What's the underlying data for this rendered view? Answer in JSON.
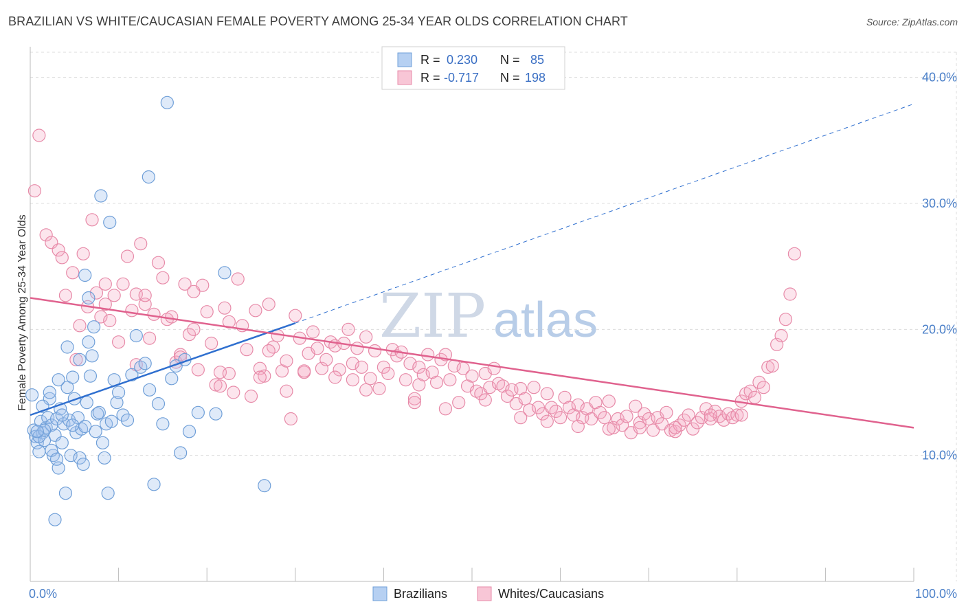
{
  "title": "BRAZILIAN VS WHITE/CAUCASIAN FEMALE POVERTY AMONG 25-34 YEAR OLDS CORRELATION CHART",
  "source": "Source: ZipAtlas.com",
  "watermark": {
    "zip": "ZIP",
    "atlas": "atlas"
  },
  "colors": {
    "blue": "#6f9fd8",
    "blue_fill": "rgba(164,196,238,0.35)",
    "blue_line": "#2f6fcf",
    "pink": "#e78aa8",
    "pink_fill": "rgba(244,170,196,0.30)",
    "pink_line": "#e0628e",
    "grid": "#dcdcdc",
    "tick_label": "#4a7fc8"
  },
  "legend": {
    "rows": [
      {
        "r_label": "R =",
        "r_value": "0.230",
        "n_label": "N =",
        "n_value": "85"
      },
      {
        "r_label": "R =",
        "r_value": "-0.717",
        "n_label": "N =",
        "n_value": "198"
      }
    ]
  },
  "bottom_legend": [
    {
      "label": "Brazilians"
    },
    {
      "label": "Whites/Caucasians"
    }
  ],
  "chart_data": {
    "type": "scatter",
    "title": "BRAZILIAN VS WHITE/CAUCASIAN FEMALE POVERTY AMONG 25-34 YEAR OLDS CORRELATION CHART",
    "xlabel": "",
    "ylabel": "Female Poverty Among 25-34 Year Olds",
    "xlim": [
      0,
      100
    ],
    "ylim": [
      0,
      42
    ],
    "x_tick_labels": [
      "0.0%",
      "100.0%"
    ],
    "y_ticks": [
      10,
      20,
      30,
      40
    ],
    "y_tick_labels": [
      "10.0%",
      "20.0%",
      "30.0%",
      "40.0%"
    ],
    "series": [
      {
        "name": "Brazilians",
        "r": 0.23,
        "n": 85,
        "trend": {
          "x0": 0,
          "y0": 13.2,
          "x1": 30,
          "y1": 20.5,
          "dashed_to_x": 100,
          "dashed_to_y": 37.9
        },
        "points": [
          [
            0.2,
            14.8
          ],
          [
            0.4,
            12.0
          ],
          [
            0.6,
            11.5
          ],
          [
            0.8,
            11.0
          ],
          [
            1.0,
            10.3
          ],
          [
            1.2,
            12.7
          ],
          [
            1.4,
            11.8
          ],
          [
            1.6,
            11.2
          ],
          [
            1.8,
            12.2
          ],
          [
            2.0,
            13.0
          ],
          [
            2.2,
            14.5
          ],
          [
            2.4,
            12.4
          ],
          [
            2.6,
            10.0
          ],
          [
            2.8,
            11.6
          ],
          [
            3.0,
            12.9
          ],
          [
            3.2,
            9.0
          ],
          [
            3.4,
            13.7
          ],
          [
            3.6,
            11.0
          ],
          [
            3.8,
            12.5
          ],
          [
            4.0,
            7.0
          ],
          [
            4.2,
            15.4
          ],
          [
            4.4,
            12.8
          ],
          [
            4.6,
            10.0
          ],
          [
            4.8,
            16.2
          ],
          [
            5.0,
            14.5
          ],
          [
            5.2,
            11.8
          ],
          [
            5.4,
            13.0
          ],
          [
            5.6,
            9.8
          ],
          [
            5.8,
            12.1
          ],
          [
            6.0,
            9.3
          ],
          [
            6.2,
            12.3
          ],
          [
            6.4,
            14.2
          ],
          [
            6.6,
            19.0
          ],
          [
            6.8,
            16.3
          ],
          [
            7.0,
            17.9
          ],
          [
            7.2,
            20.2
          ],
          [
            7.4,
            11.9
          ],
          [
            7.6,
            13.3
          ],
          [
            7.8,
            13.4
          ],
          [
            8.0,
            30.6
          ],
          [
            8.2,
            11.0
          ],
          [
            8.4,
            9.8
          ],
          [
            8.6,
            12.5
          ],
          [
            8.8,
            7.0
          ],
          [
            9.0,
            28.5
          ],
          [
            9.2,
            12.7
          ],
          [
            9.5,
            16.0
          ],
          [
            9.8,
            14.2
          ],
          [
            10.0,
            15.0
          ],
          [
            10.5,
            13.2
          ],
          [
            11.0,
            12.8
          ],
          [
            11.5,
            16.4
          ],
          [
            12.0,
            19.5
          ],
          [
            12.5,
            17.0
          ],
          [
            13.0,
            17.3
          ],
          [
            13.5,
            15.2
          ],
          [
            14.0,
            7.7
          ],
          [
            14.5,
            14.1
          ],
          [
            15.0,
            12.5
          ],
          [
            15.5,
            38.0
          ],
          [
            16.0,
            16.1
          ],
          [
            16.5,
            17.1
          ],
          [
            17.0,
            10.2
          ],
          [
            17.5,
            17.6
          ],
          [
            18.0,
            11.9
          ],
          [
            19.0,
            13.4
          ],
          [
            2.8,
            4.9
          ],
          [
            3.2,
            16.0
          ],
          [
            4.2,
            18.6
          ],
          [
            5.6,
            17.6
          ],
          [
            1.0,
            11.5
          ],
          [
            1.6,
            12.0
          ],
          [
            2.4,
            10.4
          ],
          [
            3.6,
            13.2
          ],
          [
            4.8,
            12.4
          ],
          [
            6.2,
            24.3
          ],
          [
            6.6,
            22.5
          ],
          [
            13.4,
            32.1
          ],
          [
            21.0,
            13.3
          ],
          [
            22.0,
            24.5
          ],
          [
            26.5,
            7.6
          ],
          [
            1.4,
            13.9
          ],
          [
            2.2,
            15.0
          ],
          [
            0.8,
            11.9
          ],
          [
            3.0,
            9.7
          ]
        ]
      },
      {
        "name": "Whites/Caucasians",
        "r": -0.717,
        "n": 198,
        "trend": {
          "x0": 0,
          "y0": 22.5,
          "x1": 100,
          "y1": 12.2
        },
        "points": [
          [
            0.5,
            31.0
          ],
          [
            1.0,
            35.4
          ],
          [
            1.8,
            27.5
          ],
          [
            2.4,
            26.9
          ],
          [
            3.2,
            26.3
          ],
          [
            3.6,
            25.7
          ],
          [
            4.0,
            22.7
          ],
          [
            4.8,
            24.5
          ],
          [
            5.2,
            17.6
          ],
          [
            5.6,
            20.3
          ],
          [
            6.0,
            26.0
          ],
          [
            6.5,
            21.8
          ],
          [
            7.0,
            28.7
          ],
          [
            7.5,
            22.9
          ],
          [
            8.0,
            21.0
          ],
          [
            8.5,
            23.6
          ],
          [
            9.0,
            20.7
          ],
          [
            9.5,
            22.7
          ],
          [
            10.0,
            19.0
          ],
          [
            10.5,
            23.6
          ],
          [
            11.0,
            25.8
          ],
          [
            11.5,
            21.5
          ],
          [
            12.0,
            17.2
          ],
          [
            12.5,
            26.8
          ],
          [
            13.0,
            22.0
          ],
          [
            13.5,
            19.3
          ],
          [
            14.0,
            21.2
          ],
          [
            14.5,
            25.3
          ],
          [
            15.0,
            24.1
          ],
          [
            15.5,
            20.8
          ],
          [
            16.0,
            21.0
          ],
          [
            16.5,
            17.4
          ],
          [
            17.0,
            18.0
          ],
          [
            17.5,
            23.6
          ],
          [
            18.0,
            19.6
          ],
          [
            18.5,
            20.0
          ],
          [
            19.0,
            16.8
          ],
          [
            19.5,
            23.5
          ],
          [
            20.0,
            21.4
          ],
          [
            20.5,
            18.9
          ],
          [
            21.0,
            15.6
          ],
          [
            21.5,
            16.6
          ],
          [
            22.0,
            21.7
          ],
          [
            22.5,
            16.5
          ],
          [
            23.0,
            15.0
          ],
          [
            23.5,
            24.0
          ],
          [
            24.0,
            20.3
          ],
          [
            24.5,
            18.4
          ],
          [
            25.0,
            14.7
          ],
          [
            25.5,
            21.5
          ],
          [
            26.0,
            16.9
          ],
          [
            26.5,
            16.3
          ],
          [
            27.0,
            22.0
          ],
          [
            27.5,
            18.6
          ],
          [
            28.0,
            19.5
          ],
          [
            28.5,
            16.7
          ],
          [
            29.0,
            15.1
          ],
          [
            29.5,
            12.9
          ],
          [
            30.0,
            21.1
          ],
          [
            30.5,
            19.3
          ],
          [
            31.0,
            16.6
          ],
          [
            31.5,
            18.1
          ],
          [
            32.0,
            19.8
          ],
          [
            32.5,
            18.5
          ],
          [
            33.0,
            16.9
          ],
          [
            33.5,
            17.6
          ],
          [
            34.0,
            19.0
          ],
          [
            34.5,
            18.7
          ],
          [
            35.0,
            16.8
          ],
          [
            35.5,
            18.9
          ],
          [
            36.0,
            20.0
          ],
          [
            36.5,
            16.0
          ],
          [
            37.0,
            18.5
          ],
          [
            37.5,
            17.0
          ],
          [
            38.0,
            19.4
          ],
          [
            38.5,
            16.1
          ],
          [
            39.0,
            18.3
          ],
          [
            39.5,
            15.3
          ],
          [
            40.0,
            17.0
          ],
          [
            40.5,
            16.5
          ],
          [
            41.0,
            18.4
          ],
          [
            41.5,
            17.9
          ],
          [
            42.0,
            18.2
          ],
          [
            42.5,
            16.0
          ],
          [
            43.0,
            17.3
          ],
          [
            43.5,
            14.5
          ],
          [
            44.0,
            17.0
          ],
          [
            44.5,
            16.4
          ],
          [
            45.0,
            18.0
          ],
          [
            45.5,
            16.6
          ],
          [
            46.0,
            15.8
          ],
          [
            46.5,
            17.6
          ],
          [
            47.0,
            18.0
          ],
          [
            47.5,
            16.0
          ],
          [
            48.0,
            17.1
          ],
          [
            48.5,
            14.2
          ],
          [
            49.0,
            16.9
          ],
          [
            49.5,
            15.5
          ],
          [
            50.0,
            16.3
          ],
          [
            50.5,
            15.1
          ],
          [
            51.0,
            14.9
          ],
          [
            51.5,
            16.5
          ],
          [
            52.0,
            15.4
          ],
          [
            52.5,
            16.9
          ],
          [
            53.0,
            15.7
          ],
          [
            53.5,
            15.5
          ],
          [
            54.0,
            14.7
          ],
          [
            54.5,
            15.2
          ],
          [
            55.0,
            14.1
          ],
          [
            55.5,
            15.3
          ],
          [
            56.0,
            14.5
          ],
          [
            56.5,
            13.6
          ],
          [
            57.0,
            15.4
          ],
          [
            57.5,
            13.8
          ],
          [
            58.0,
            13.3
          ],
          [
            58.5,
            14.9
          ],
          [
            59.0,
            13.8
          ],
          [
            59.5,
            13.5
          ],
          [
            60.0,
            13.0
          ],
          [
            60.5,
            14.6
          ],
          [
            61.0,
            13.8
          ],
          [
            61.5,
            13.2
          ],
          [
            62.0,
            14.0
          ],
          [
            62.5,
            13.0
          ],
          [
            63.0,
            13.7
          ],
          [
            63.5,
            12.9
          ],
          [
            64.0,
            14.2
          ],
          [
            64.5,
            13.4
          ],
          [
            65.0,
            13.0
          ],
          [
            65.5,
            14.3
          ],
          [
            66.0,
            12.2
          ],
          [
            66.5,
            12.9
          ],
          [
            67.0,
            12.4
          ],
          [
            67.5,
            13.1
          ],
          [
            68.0,
            11.8
          ],
          [
            68.5,
            13.9
          ],
          [
            69.0,
            12.6
          ],
          [
            69.5,
            13.3
          ],
          [
            70.0,
            12.9
          ],
          [
            70.5,
            12.0
          ],
          [
            71.0,
            13.0
          ],
          [
            71.5,
            12.5
          ],
          [
            72.0,
            13.4
          ],
          [
            72.5,
            12.0
          ],
          [
            73.0,
            11.9
          ],
          [
            73.5,
            12.4
          ],
          [
            74.0,
            12.8
          ],
          [
            74.5,
            13.2
          ],
          [
            75.0,
            12.1
          ],
          [
            75.5,
            12.6
          ],
          [
            76.0,
            13.0
          ],
          [
            76.5,
            13.7
          ],
          [
            77.0,
            12.9
          ],
          [
            77.5,
            13.5
          ],
          [
            78.0,
            13.1
          ],
          [
            78.5,
            12.8
          ],
          [
            79.0,
            13.3
          ],
          [
            79.5,
            13.0
          ],
          [
            80.0,
            13.2
          ],
          [
            80.5,
            14.3
          ],
          [
            81.0,
            14.9
          ],
          [
            81.5,
            15.1
          ],
          [
            82.0,
            14.6
          ],
          [
            82.5,
            15.8
          ],
          [
            83.0,
            15.4
          ],
          [
            83.5,
            17.0
          ],
          [
            84.0,
            17.1
          ],
          [
            84.5,
            18.8
          ],
          [
            85.0,
            19.5
          ],
          [
            85.5,
            20.8
          ],
          [
            86.0,
            22.8
          ],
          [
            86.5,
            26.0
          ],
          [
            12.0,
            22.8
          ],
          [
            18.5,
            23.0
          ],
          [
            22.5,
            20.6
          ],
          [
            27.0,
            18.3
          ],
          [
            31.0,
            16.7
          ],
          [
            34.5,
            16.2
          ],
          [
            38.0,
            15.2
          ],
          [
            43.5,
            14.2
          ],
          [
            47.0,
            13.7
          ],
          [
            51.5,
            14.4
          ],
          [
            55.5,
            13.0
          ],
          [
            58.5,
            12.7
          ],
          [
            62.0,
            12.3
          ],
          [
            65.5,
            12.1
          ],
          [
            69.0,
            12.2
          ],
          [
            73.0,
            12.2
          ],
          [
            77.0,
            13.2
          ],
          [
            80.5,
            13.2
          ],
          [
            8.5,
            22.0
          ],
          [
            13.0,
            22.7
          ],
          [
            17.0,
            17.8
          ],
          [
            21.5,
            15.5
          ],
          [
            26.0,
            16.2
          ],
          [
            29.0,
            17.5
          ],
          [
            36.5,
            17.3
          ],
          [
            44.0,
            15.6
          ]
        ]
      }
    ]
  }
}
